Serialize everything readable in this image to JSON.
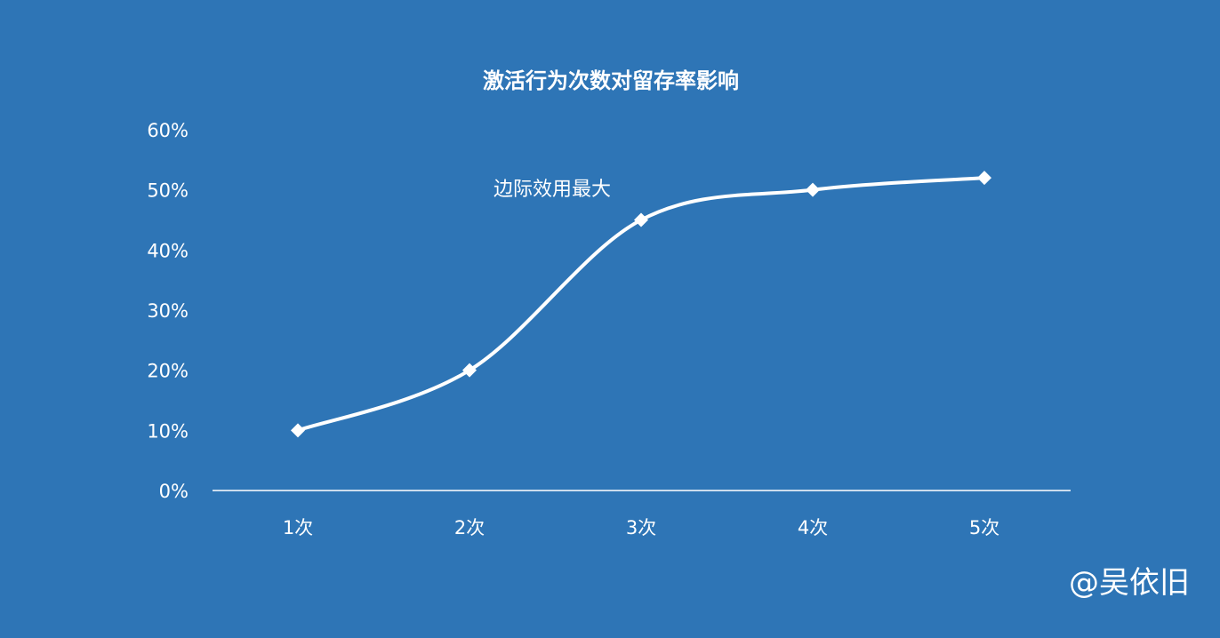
{
  "chart_data": {
    "type": "line",
    "title": "激活行为次数对留存率影响",
    "categories": [
      "1次",
      "2次",
      "3次",
      "4次",
      "5次"
    ],
    "values": [
      10,
      20,
      45,
      50,
      52
    ],
    "ylim": [
      0,
      60
    ],
    "yticks": [
      "0%",
      "10%",
      "20%",
      "30%",
      "40%",
      "50%",
      "60%"
    ],
    "ytick_values": [
      0,
      10,
      20,
      30,
      40,
      50,
      60
    ],
    "smooth": true,
    "marker": "diamond",
    "grid": false,
    "annotation": "边际效用最大",
    "colors": {
      "background": "#2e75b6",
      "line": "#ffffff"
    }
  },
  "watermark": "@吴依旧"
}
